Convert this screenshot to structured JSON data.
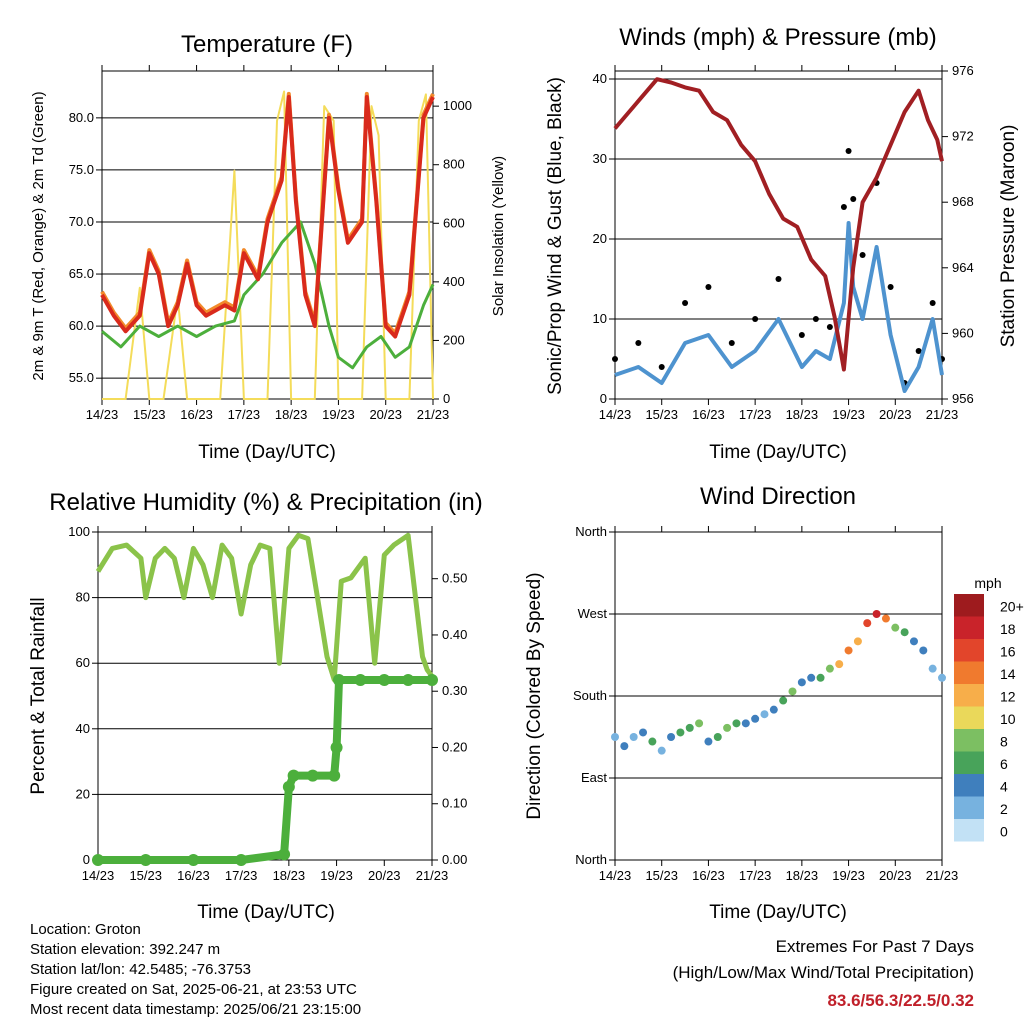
{
  "colors": {
    "temp": "#d92a1c",
    "temp9m": "#f28a2b",
    "dew": "#4caf3c",
    "solar": "#f4dc5a",
    "wind": "#4e93cf",
    "gust": "#000000",
    "pressure": "#a11f23",
    "rh": "#8bc34a",
    "precip": "#4caf3c",
    "extremes": "#c0202a"
  },
  "chart_data": [
    {
      "type": "line",
      "title": "Temperature (F)",
      "xlabel": "Time (Day/UTC)",
      "ylabel": "2m & 9m T (Red, Orange) & 2m Td (Green)",
      "y2label": "Solar Insolation (Yellow)",
      "x_ticks": [
        "14/23",
        "15/23",
        "16/23",
        "17/23",
        "18/23",
        "19/23",
        "20/23",
        "21/23"
      ],
      "x_range_days": [
        0,
        7
      ],
      "ylim": [
        53,
        84.5
      ],
      "y_ticks": [
        "55.0",
        "60.0",
        "65.0",
        "70.0",
        "75.0",
        "80.0"
      ],
      "y2lim": [
        0,
        1120
      ],
      "y2_ticks": [
        "0",
        "200",
        "400",
        "600",
        "800",
        "1000"
      ],
      "series": [
        {
          "key": "temp2m",
          "x": [
            0,
            0.25,
            0.5,
            0.8,
            1.0,
            1.2,
            1.4,
            1.6,
            1.8,
            2.0,
            2.2,
            2.4,
            2.6,
            2.8,
            3.0,
            3.3,
            3.5,
            3.8,
            3.95,
            4.1,
            4.3,
            4.5,
            4.8,
            5.0,
            5.2,
            5.5,
            5.6,
            5.8,
            6.0,
            6.2,
            6.5,
            6.8,
            7.0
          ],
          "y": [
            63,
            61,
            59.5,
            61,
            67,
            65,
            60,
            62,
            66,
            62,
            61,
            61.5,
            62,
            61.5,
            67,
            64.5,
            70,
            74,
            82,
            72,
            63,
            60,
            80,
            73,
            68,
            70,
            82,
            72,
            60,
            59,
            63,
            80,
            82
          ]
        },
        {
          "key": "dew2m",
          "x": [
            0,
            0.4,
            0.8,
            1.2,
            1.6,
            2.0,
            2.4,
            2.8,
            3.0,
            3.4,
            3.8,
            4.2,
            4.5,
            4.8,
            5.0,
            5.3,
            5.6,
            5.9,
            6.2,
            6.5,
            6.8,
            7.0
          ],
          "y": [
            59.5,
            58,
            60,
            59,
            60,
            59,
            60,
            60.5,
            63,
            65,
            68,
            70,
            66,
            60,
            57,
            56,
            58,
            59,
            57,
            58,
            62,
            64
          ]
        },
        {
          "key": "solar",
          "x": [
            0,
            0.5,
            0.8,
            1.0,
            1.3,
            1.6,
            1.8,
            2.0,
            2.5,
            2.8,
            3.0,
            3.1,
            3.5,
            3.7,
            3.85,
            4.0,
            4.5,
            4.7,
            4.9,
            5.0,
            5.5,
            5.7,
            5.85,
            6.0,
            6.5,
            6.7,
            6.85,
            7.0
          ],
          "y": [
            0,
            0,
            380,
            0,
            0,
            350,
            0,
            0,
            0,
            780,
            0,
            0,
            0,
            950,
            1050,
            0,
            0,
            1000,
            950,
            0,
            0,
            1000,
            900,
            0,
            0,
            950,
            1040,
            0
          ]
        }
      ]
    },
    {
      "type": "line",
      "title": "Winds (mph) & Pressure (mb)",
      "xlabel": "Time (Day/UTC)",
      "ylabel": "Sonic/Prop Wind & Gust (Blue, Black)",
      "y2label": "Station Pressure (Maroon)",
      "x_ticks": [
        "14/23",
        "15/23",
        "16/23",
        "17/23",
        "18/23",
        "19/23",
        "20/23",
        "21/23"
      ],
      "x_range_days": [
        0,
        7
      ],
      "ylim": [
        0,
        41
      ],
      "y_ticks": [
        "0",
        "10",
        "20",
        "30",
        "40"
      ],
      "y2lim": [
        956,
        976
      ],
      "y2_ticks": [
        "956",
        "960",
        "964",
        "968",
        "972",
        "976"
      ],
      "series": [
        {
          "key": "pressure",
          "x": [
            0,
            0.3,
            0.6,
            0.9,
            1.2,
            1.5,
            1.8,
            2.1,
            2.4,
            2.7,
            3.0,
            3.3,
            3.6,
            3.9,
            4.2,
            4.5,
            4.7,
            4.9,
            5.1,
            5.3,
            5.6,
            5.9,
            6.2,
            6.5,
            6.7,
            6.9,
            7.0
          ],
          "y": [
            972.5,
            973.5,
            974.5,
            975.5,
            975.3,
            975,
            974.8,
            973.5,
            973,
            971.5,
            970.5,
            968.5,
            967,
            966.5,
            964.5,
            963.5,
            961,
            957.8,
            964,
            968,
            969.5,
            971.5,
            973.5,
            974.8,
            973,
            971.8,
            970.5
          ]
        },
        {
          "key": "wind",
          "x": [
            0,
            0.5,
            1.0,
            1.5,
            2.0,
            2.5,
            3.0,
            3.5,
            4.0,
            4.3,
            4.6,
            4.9,
            5.0,
            5.1,
            5.3,
            5.6,
            5.9,
            6.2,
            6.5,
            6.8,
            7.0
          ],
          "y": [
            3,
            4,
            2,
            7,
            8,
            4,
            6,
            10,
            4,
            6,
            5,
            12,
            22,
            14,
            10,
            19,
            8,
            1,
            4,
            10,
            3
          ]
        },
        {
          "key": "gust",
          "x": [
            0,
            0.5,
            1.0,
            1.5,
            2.0,
            2.5,
            3.0,
            3.5,
            4.0,
            4.3,
            4.6,
            4.9,
            5.0,
            5.1,
            5.3,
            5.6,
            5.9,
            6.2,
            6.5,
            6.8,
            7.0
          ],
          "y": [
            5,
            7,
            4,
            12,
            14,
            7,
            10,
            15,
            8,
            10,
            9,
            24,
            31,
            25,
            18,
            27,
            14,
            2,
            6,
            12,
            5
          ]
        }
      ]
    },
    {
      "type": "line",
      "title": "Relative Humidity (%) & Precipitation (in)",
      "xlabel": "Time (Day/UTC)",
      "ylabel": "Percent & Total Rainfall",
      "x_ticks": [
        "14/23",
        "15/23",
        "16/23",
        "17/23",
        "18/23",
        "19/23",
        "20/23",
        "21/23"
      ],
      "x_range_days": [
        0,
        7
      ],
      "ylim": [
        0,
        100
      ],
      "y_ticks": [
        "0",
        "20",
        "40",
        "60",
        "80",
        "100"
      ],
      "y2lim": [
        0,
        0.583
      ],
      "y2_ticks": [
        "0.00",
        "0.10",
        "0.20",
        "0.30",
        "0.40",
        "0.50"
      ],
      "series": [
        {
          "key": "rh",
          "x": [
            0,
            0.3,
            0.6,
            0.9,
            1.0,
            1.2,
            1.4,
            1.6,
            1.8,
            2.0,
            2.2,
            2.4,
            2.6,
            2.8,
            3.0,
            3.2,
            3.4,
            3.6,
            3.8,
            4.0,
            4.2,
            4.4,
            4.6,
            4.8,
            4.95,
            5.1,
            5.3,
            5.6,
            5.8,
            6.0,
            6.2,
            6.5,
            6.8,
            6.9,
            7.0
          ],
          "y": [
            88,
            95,
            96,
            92,
            80,
            92,
            95,
            92,
            80,
            95,
            90,
            80,
            96,
            92,
            75,
            90,
            96,
            95,
            60,
            95,
            99,
            98,
            80,
            62,
            55,
            85,
            86,
            92,
            60,
            93,
            96,
            99,
            62,
            58,
            56
          ]
        },
        {
          "key": "precip",
          "x": [
            0,
            1.0,
            2.0,
            3.0,
            3.9,
            4.0,
            4.1,
            4.5,
            4.95,
            5.0,
            5.05,
            5.5,
            6.0,
            6.5,
            7.0
          ],
          "y": [
            0.0,
            0.0,
            0.0,
            0.0,
            0.01,
            0.13,
            0.15,
            0.15,
            0.15,
            0.2,
            0.32,
            0.32,
            0.32,
            0.32,
            0.32
          ]
        }
      ]
    },
    {
      "type": "scatter",
      "title": "Wind Direction",
      "xlabel": "Time (Day/UTC)",
      "ylabel": "Direction (Colored By Speed)",
      "x_ticks": [
        "14/23",
        "15/23",
        "16/23",
        "17/23",
        "18/23",
        "19/23",
        "20/23",
        "21/23"
      ],
      "x_range_days": [
        0,
        7
      ],
      "y_ticks": [
        "North",
        "East",
        "South",
        "West",
        "North"
      ],
      "ylim_degrees": [
        0,
        360
      ],
      "colorbar": {
        "label": "mph",
        "levels": [
          "20+",
          "18",
          "16",
          "14",
          "12",
          "10",
          "8",
          "6",
          "4",
          "2",
          "0"
        ],
        "colors": [
          "#9e1b1e",
          "#c9232a",
          "#e2452b",
          "#f07a2e",
          "#f7ae4a",
          "#ead85a",
          "#7cbf62",
          "#48a35a",
          "#3f7fbd",
          "#77b2df",
          "#c2e1f5"
        ]
      },
      "series": [
        {
          "key": "direction_deg",
          "x": [
            0,
            0.2,
            0.4,
            0.6,
            0.8,
            1.0,
            1.2,
            1.4,
            1.6,
            1.8,
            2.0,
            2.2,
            2.4,
            2.6,
            2.8,
            3.0,
            3.2,
            3.4,
            3.6,
            3.8,
            4.0,
            4.2,
            4.4,
            4.6,
            4.8,
            5.0,
            5.2,
            5.4,
            5.6,
            5.8,
            6.0,
            6.2,
            6.4,
            6.6,
            6.8,
            7.0
          ],
          "y": [
            135,
            125,
            135,
            140,
            130,
            120,
            135,
            140,
            145,
            150,
            130,
            135,
            145,
            150,
            150,
            155,
            160,
            165,
            175,
            185,
            195,
            200,
            200,
            210,
            215,
            230,
            240,
            260,
            270,
            265,
            255,
            250,
            240,
            230,
            210,
            200
          ],
          "speed": [
            2,
            3,
            2,
            4,
            5,
            2,
            3,
            5,
            6,
            7,
            4,
            6,
            7,
            5,
            3,
            4,
            2,
            3,
            6,
            7,
            4,
            3,
            5,
            8,
            11,
            13,
            12,
            16,
            18,
            13,
            8,
            5,
            4,
            3,
            2,
            2
          ]
        }
      ]
    }
  ],
  "footer": {
    "location": "Location: Groton",
    "elevation": "Station elevation: 392.247 m",
    "latlon": "Station lat/lon: 42.5485; -76.3753",
    "created": "Figure created on Sat, 2025-06-21, at 23:53 UTC",
    "timestamp": "Most recent data timestamp: 2025/06/21 23:15:00"
  },
  "extremes": {
    "heading": "Extremes For Past 7 Days",
    "subheading": "(High/Low/Max Wind/Total Precipitation)",
    "values": "83.6/56.3/22.5/0.32"
  }
}
